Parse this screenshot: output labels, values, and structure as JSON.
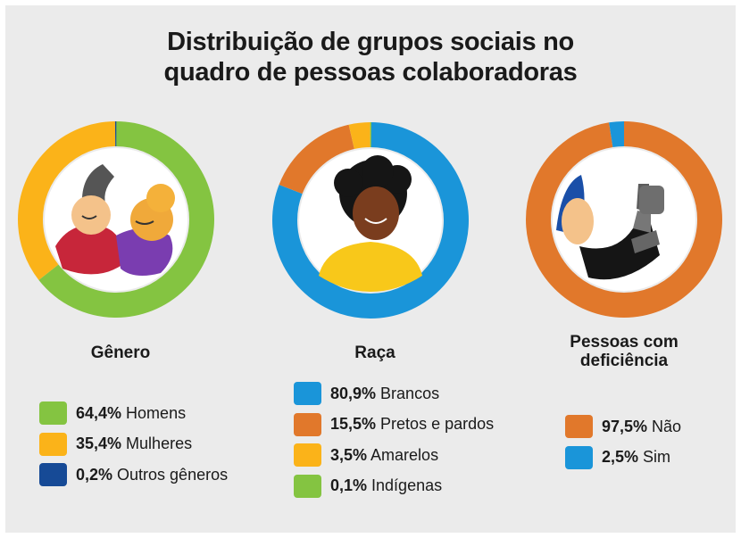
{
  "title": {
    "line1": "Distribuição de grupos sociais no",
    "line2": "quadro de pessoas colaboradoras"
  },
  "colors": {
    "green": "#84c441",
    "yellow": "#fbb319",
    "darkblue": "#164a96",
    "blue": "#1a95d9",
    "orange": "#e1782b",
    "panel": "#ebebeb"
  },
  "chart_data": [
    {
      "type": "pie",
      "title": "Gênero",
      "slices": [
        {
          "label": "Homens",
          "value": 64.4,
          "value_text": "64,4%",
          "color": "#84c441"
        },
        {
          "label": "Mulheres",
          "value": 35.4,
          "value_text": "35,4%",
          "color": "#fbb319"
        },
        {
          "label": "Outros gêneros",
          "value": 0.2,
          "value_text": "0,2%",
          "color": "#164a96"
        }
      ]
    },
    {
      "type": "pie",
      "title": "Raça",
      "slices": [
        {
          "label": "Brancos",
          "value": 80.9,
          "value_text": "80,9%",
          "color": "#1a95d9"
        },
        {
          "label": "Pretos e pardos",
          "value": 15.5,
          "value_text": "15,5%",
          "color": "#e1782b"
        },
        {
          "label": "Amarelos",
          "value": 3.5,
          "value_text": "3,5%",
          "color": "#fbb319"
        },
        {
          "label": "Indígenas",
          "value": 0.1,
          "value_text": "0,1%",
          "color": "#84c441"
        }
      ]
    },
    {
      "type": "pie",
      "title": "Pessoas com deficiência",
      "title_lines": [
        "Pessoas com",
        "deficiência"
      ],
      "slices": [
        {
          "label": "Não",
          "value": 97.5,
          "value_text": "97,5%",
          "color": "#e1782b"
        },
        {
          "label": "Sim",
          "value": 2.5,
          "value_text": "2,5%",
          "color": "#1a95d9"
        }
      ]
    }
  ]
}
